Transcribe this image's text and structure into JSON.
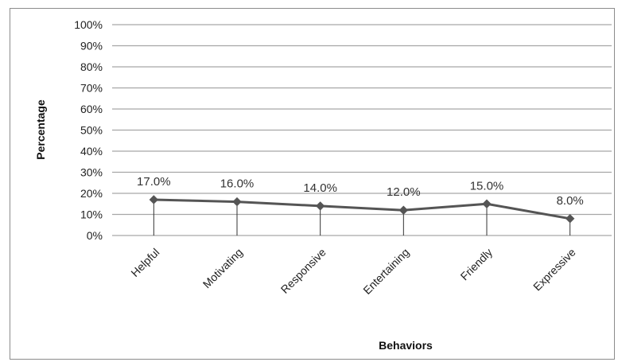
{
  "chart_data": {
    "type": "line",
    "categories": [
      "Helpful",
      "Motivating",
      "Responsive",
      "Entertaining",
      "Friendly",
      "Expressive"
    ],
    "values": [
      17.0,
      16.0,
      14.0,
      12.0,
      15.0,
      8.0
    ],
    "data_labels": [
      "17.0%",
      "16.0%",
      "14.0%",
      "12.0%",
      "15.0%",
      "8.0%"
    ],
    "title": "",
    "xlabel": "Behaviors",
    "ylabel": "Percentage",
    "ylim": [
      0,
      100
    ],
    "yticks": [
      "0%",
      "10%",
      "20%",
      "30%",
      "40%",
      "50%",
      "60%",
      "70%",
      "80%",
      "90%",
      "100%"
    ],
    "grid": true,
    "legend": "none",
    "drop_lines": true,
    "marker": "diamond",
    "colors": {
      "line": "#555555",
      "marker": "#555555",
      "grid": "#a6a6a6",
      "drop_line": "#333333",
      "frame": "#8c8c8c"
    }
  }
}
